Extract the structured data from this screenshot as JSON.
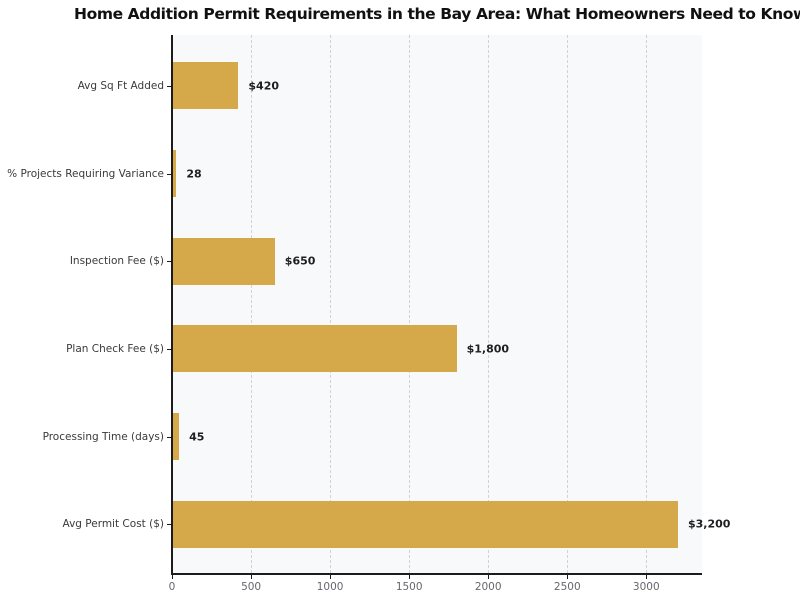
{
  "chart_data": {
    "type": "bar",
    "orientation": "horizontal",
    "title": "Home Addition Permit Requirements in the Bay Area: What Homeowners Need to Know",
    "categories": [
      "Avg Sq Ft Added",
      "% Projects Requiring Variance",
      "Inspection Fee ($)",
      "Plan Check Fee ($)",
      "Processing Time (days)",
      "Avg Permit Cost ($)"
    ],
    "values": [
      420,
      28,
      650,
      1800,
      45,
      3200
    ],
    "value_labels": [
      "$420",
      "28",
      "$650",
      "$1,800",
      "45",
      "$3,200"
    ],
    "x_ticks": [
      0,
      500,
      1000,
      1500,
      2000,
      2500,
      3000
    ],
    "x_tick_labels": [
      "0",
      "500",
      "1000",
      "1500",
      "2000",
      "2500",
      "3000"
    ],
    "xlim": [
      0,
      3352
    ],
    "grid": true,
    "grid_style": "dashed-vertical",
    "legend": false,
    "colors": {
      "bar": "#D5A94A",
      "plot_background": "#F8F9FA",
      "figure_background": "#FFFFFF",
      "gridline": "#CFD2D6",
      "spine": "#1C1C1C",
      "tick_label": "#666670",
      "category_label": "#3A3A3A",
      "value_label": "#1F1F23",
      "title": "#111111"
    }
  }
}
